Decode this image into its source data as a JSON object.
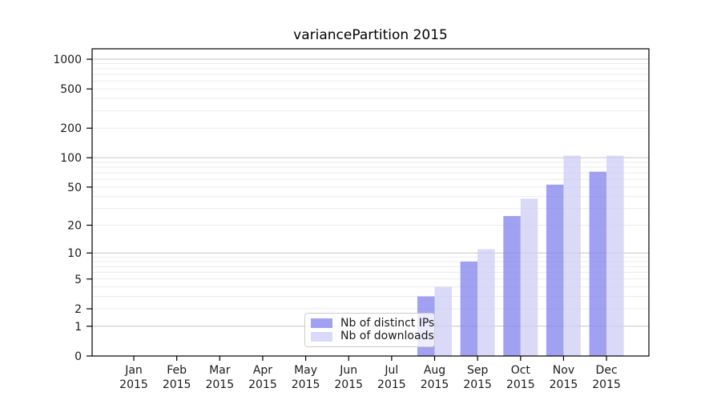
{
  "chart_data": {
    "type": "bar",
    "title": "variancePartition 2015",
    "categories": [
      {
        "month": "Jan",
        "year": "2015"
      },
      {
        "month": "Feb",
        "year": "2015"
      },
      {
        "month": "Mar",
        "year": "2015"
      },
      {
        "month": "Apr",
        "year": "2015"
      },
      {
        "month": "May",
        "year": "2015"
      },
      {
        "month": "Jun",
        "year": "2015"
      },
      {
        "month": "Jul",
        "year": "2015"
      },
      {
        "month": "Aug",
        "year": "2015"
      },
      {
        "month": "Sep",
        "year": "2015"
      },
      {
        "month": "Oct",
        "year": "2015"
      },
      {
        "month": "Nov",
        "year": "2015"
      },
      {
        "month": "Dec",
        "year": "2015"
      }
    ],
    "series": [
      {
        "name": "Nb of distinct IPs",
        "color": "#8282ee",
        "values": [
          0,
          0,
          0,
          0,
          0,
          0,
          0,
          3,
          8,
          25,
          53,
          72
        ]
      },
      {
        "name": "Nb of downloads",
        "color": "#cdcdf5",
        "values": [
          0,
          0,
          0,
          0,
          0,
          0,
          0,
          4,
          11,
          38,
          105,
          105
        ]
      }
    ],
    "yticks": [
      0,
      1,
      2,
      5,
      10,
      20,
      50,
      100,
      200,
      500,
      1000
    ],
    "yscale": "log1p",
    "ylim": [
      0,
      1000
    ],
    "grid": true,
    "legend_position": "lower-center",
    "colors": {
      "grid_major": "#c6c6c6",
      "grid_minor": "#ebebeb",
      "axis": "#000000",
      "tick_text": "#1a1a1a",
      "legend_border": "#cccccc"
    },
    "bar_opacity": 0.75
  }
}
